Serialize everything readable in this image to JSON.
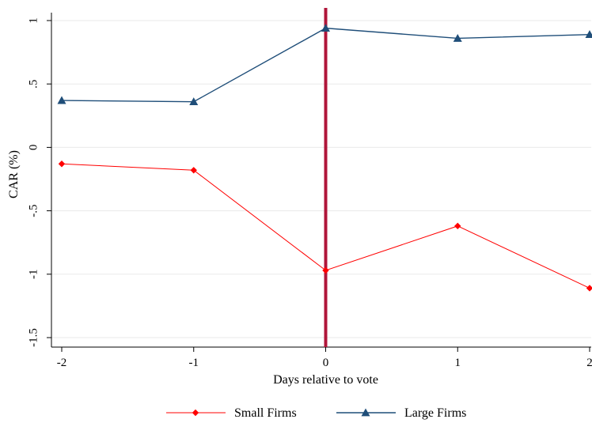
{
  "chart_data": {
    "type": "line",
    "title": "",
    "xlabel": "Days relative to vote",
    "ylabel": "CAR (%)",
    "x": [
      -2,
      -1,
      0,
      1,
      2
    ],
    "xticks": [
      "-2",
      "-1",
      "0",
      "1",
      "2"
    ],
    "yticks": [
      "1",
      ".5",
      "0",
      "-.5",
      "-1",
      "-1.5"
    ],
    "ytick_values": [
      1,
      0.5,
      0,
      -0.5,
      -1,
      -1.5
    ],
    "xlim": [
      -2,
      2
    ],
    "ylim": [
      -1.5,
      1
    ],
    "grid": true,
    "vline": {
      "x": 0,
      "color": "#b0163a"
    },
    "legend_position": "bottom",
    "series": [
      {
        "name": "Small Firms",
        "values": [
          -0.13,
          -0.18,
          -0.97,
          -0.62,
          -1.11
        ],
        "color": "#ff0000",
        "marker": "diamond"
      },
      {
        "name": "Large Firms",
        "values": [
          0.37,
          0.36,
          0.94,
          0.86,
          0.89
        ],
        "color": "#1f4e79",
        "marker": "triangle"
      }
    ]
  }
}
